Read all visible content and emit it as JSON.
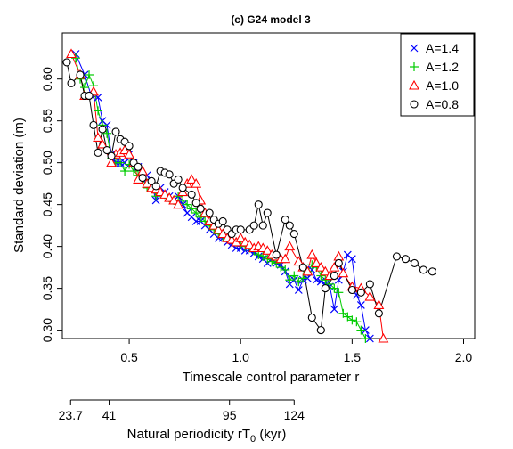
{
  "chart_data": {
    "type": "line",
    "title": "(c) G24 model 3",
    "xlabel": "Timescale control parameter r",
    "ylabel": "Standard deviation (m)",
    "xlim": [
      0.2,
      2.05
    ],
    "ylim": [
      0.29,
      0.655
    ],
    "xticks": [
      0.5,
      1.0,
      1.5,
      2.0
    ],
    "xtick_labels": [
      "0.5",
      "1.0",
      "1.5",
      "2.0"
    ],
    "yticks": [
      0.3,
      0.35,
      0.4,
      0.45,
      0.5,
      0.55,
      0.6
    ],
    "ytick_labels": [
      "0.30",
      "0.35",
      "0.40",
      "0.45",
      "0.50",
      "0.55",
      "0.60"
    ],
    "grid": false,
    "legend_position": "top-right",
    "secondary_axis": {
      "label": "Natural periodicity rT",
      "label_subscript": "0",
      "label_suffix": " (kyr)",
      "tick_labels": [
        "23.7",
        "41",
        "95",
        "124"
      ],
      "tick_positions_r": [
        0.237,
        0.41,
        0.95,
        1.24
      ]
    },
    "series": [
      {
        "name": "A=1.4",
        "marker": "x",
        "color": "#0000ff",
        "points": [
          [
            0.26,
            0.63
          ],
          [
            0.3,
            0.605
          ],
          [
            0.33,
            0.58
          ],
          [
            0.36,
            0.578
          ],
          [
            0.38,
            0.55
          ],
          [
            0.4,
            0.545
          ],
          [
            0.42,
            0.51
          ],
          [
            0.44,
            0.5
          ],
          [
            0.46,
            0.5
          ],
          [
            0.48,
            0.5
          ],
          [
            0.5,
            0.51
          ],
          [
            0.52,
            0.5
          ],
          [
            0.54,
            0.495
          ],
          [
            0.56,
            0.48
          ],
          [
            0.58,
            0.485
          ],
          [
            0.6,
            0.475
          ],
          [
            0.62,
            0.455
          ],
          [
            0.64,
            0.47
          ],
          [
            0.66,
            0.465
          ],
          [
            0.68,
            0.46
          ],
          [
            0.7,
            0.455
          ],
          [
            0.72,
            0.46
          ],
          [
            0.74,
            0.45
          ],
          [
            0.76,
            0.44
          ],
          [
            0.78,
            0.435
          ],
          [
            0.8,
            0.43
          ],
          [
            0.82,
            0.43
          ],
          [
            0.84,
            0.425
          ],
          [
            0.86,
            0.42
          ],
          [
            0.88,
            0.415
          ],
          [
            0.9,
            0.41
          ],
          [
            0.92,
            0.41
          ],
          [
            0.94,
            0.405
          ],
          [
            0.96,
            0.402
          ],
          [
            0.98,
            0.398
          ],
          [
            1.0,
            0.398
          ],
          [
            1.02,
            0.395
          ],
          [
            1.04,
            0.395
          ],
          [
            1.06,
            0.392
          ],
          [
            1.08,
            0.388
          ],
          [
            1.1,
            0.385
          ],
          [
            1.12,
            0.38
          ],
          [
            1.14,
            0.385
          ],
          [
            1.16,
            0.38
          ],
          [
            1.18,
            0.378
          ],
          [
            1.2,
            0.37
          ],
          [
            1.22,
            0.355
          ],
          [
            1.24,
            0.36
          ],
          [
            1.26,
            0.348
          ],
          [
            1.28,
            0.36
          ],
          [
            1.3,
            0.362
          ],
          [
            1.32,
            0.372
          ],
          [
            1.34,
            0.36
          ],
          [
            1.36,
            0.358
          ],
          [
            1.38,
            0.355
          ],
          [
            1.4,
            0.352
          ],
          [
            1.42,
            0.325
          ],
          [
            1.44,
            0.36
          ],
          [
            1.46,
            0.37
          ],
          [
            1.48,
            0.39
          ],
          [
            1.5,
            0.385
          ],
          [
            1.52,
            0.342
          ],
          [
            1.54,
            0.33
          ],
          [
            1.56,
            0.3
          ],
          [
            1.58,
            0.29
          ]
        ]
      },
      {
        "name": "A=1.2",
        "marker": "plus",
        "color": "#00cc00",
        "points": [
          [
            0.26,
            0.625
          ],
          [
            0.28,
            0.6
          ],
          [
            0.3,
            0.59
          ],
          [
            0.32,
            0.605
          ],
          [
            0.34,
            0.592
          ],
          [
            0.36,
            0.562
          ],
          [
            0.38,
            0.545
          ],
          [
            0.4,
            0.535
          ],
          [
            0.42,
            0.505
          ],
          [
            0.44,
            0.5
          ],
          [
            0.46,
            0.5
          ],
          [
            0.48,
            0.49
          ],
          [
            0.5,
            0.498
          ],
          [
            0.52,
            0.49
          ],
          [
            0.54,
            0.485
          ],
          [
            0.56,
            0.48
          ],
          [
            0.58,
            0.47
          ],
          [
            0.6,
            0.475
          ],
          [
            0.62,
            0.46
          ],
          [
            0.64,
            0.465
          ],
          [
            0.66,
            0.462
          ],
          [
            0.68,
            0.458
          ],
          [
            0.7,
            0.455
          ],
          [
            0.72,
            0.46
          ],
          [
            0.74,
            0.455
          ],
          [
            0.76,
            0.45
          ],
          [
            0.78,
            0.445
          ],
          [
            0.8,
            0.44
          ],
          [
            0.82,
            0.435
          ],
          [
            0.84,
            0.43
          ],
          [
            0.86,
            0.425
          ],
          [
            0.88,
            0.42
          ],
          [
            0.9,
            0.415
          ],
          [
            0.92,
            0.412
          ],
          [
            0.94,
            0.41
          ],
          [
            0.96,
            0.408
          ],
          [
            0.98,
            0.405
          ],
          [
            1.0,
            0.402
          ],
          [
            1.02,
            0.4
          ],
          [
            1.04,
            0.398
          ],
          [
            1.06,
            0.395
          ],
          [
            1.08,
            0.39
          ],
          [
            1.1,
            0.388
          ],
          [
            1.12,
            0.385
          ],
          [
            1.14,
            0.382
          ],
          [
            1.16,
            0.38
          ],
          [
            1.18,
            0.375
          ],
          [
            1.2,
            0.372
          ],
          [
            1.22,
            0.36
          ],
          [
            1.24,
            0.365
          ],
          [
            1.26,
            0.358
          ],
          [
            1.28,
            0.362
          ],
          [
            1.3,
            0.37
          ],
          [
            1.32,
            0.378
          ],
          [
            1.34,
            0.375
          ],
          [
            1.36,
            0.365
          ],
          [
            1.38,
            0.36
          ],
          [
            1.4,
            0.355
          ],
          [
            1.42,
            0.35
          ],
          [
            1.44,
            0.345
          ],
          [
            1.46,
            0.32
          ],
          [
            1.48,
            0.316
          ],
          [
            1.5,
            0.312
          ],
          [
            1.52,
            0.31
          ],
          [
            1.54,
            0.3
          ],
          [
            1.56,
            0.29
          ]
        ]
      },
      {
        "name": "A=1.0",
        "marker": "triangle",
        "color": "#ff0000",
        "points": [
          [
            0.24,
            0.63
          ],
          [
            0.28,
            0.605
          ],
          [
            0.3,
            0.58
          ],
          [
            0.34,
            0.585
          ],
          [
            0.36,
            0.53
          ],
          [
            0.38,
            0.522
          ],
          [
            0.42,
            0.5
          ],
          [
            0.44,
            0.51
          ],
          [
            0.46,
            0.512
          ],
          [
            0.48,
            0.515
          ],
          [
            0.5,
            0.51
          ],
          [
            0.52,
            0.5
          ],
          [
            0.54,
            0.48
          ],
          [
            0.56,
            0.49
          ],
          [
            0.58,
            0.475
          ],
          [
            0.6,
            0.47
          ],
          [
            0.62,
            0.468
          ],
          [
            0.64,
            0.465
          ],
          [
            0.66,
            0.462
          ],
          [
            0.68,
            0.458
          ],
          [
            0.7,
            0.455
          ],
          [
            0.72,
            0.45
          ],
          [
            0.74,
            0.465
          ],
          [
            0.76,
            0.475
          ],
          [
            0.78,
            0.48
          ],
          [
            0.8,
            0.475
          ],
          [
            0.82,
            0.455
          ],
          [
            0.84,
            0.44
          ],
          [
            0.86,
            0.43
          ],
          [
            0.88,
            0.425
          ],
          [
            0.9,
            0.42
          ],
          [
            0.92,
            0.415
          ],
          [
            0.94,
            0.41
          ],
          [
            0.96,
            0.408
          ],
          [
            0.98,
            0.405
          ],
          [
            1.0,
            0.41
          ],
          [
            1.02,
            0.405
          ],
          [
            1.04,
            0.402
          ],
          [
            1.06,
            0.398
          ],
          [
            1.08,
            0.4
          ],
          [
            1.1,
            0.398
          ],
          [
            1.12,
            0.395
          ],
          [
            1.14,
            0.39
          ],
          [
            1.16,
            0.388
          ],
          [
            1.18,
            0.385
          ],
          [
            1.2,
            0.385
          ],
          [
            1.22,
            0.4
          ],
          [
            1.26,
            0.382
          ],
          [
            1.28,
            0.375
          ],
          [
            1.3,
            0.37
          ],
          [
            1.32,
            0.39
          ],
          [
            1.34,
            0.38
          ],
          [
            1.36,
            0.375
          ],
          [
            1.38,
            0.37
          ],
          [
            1.4,
            0.365
          ],
          [
            1.42,
            0.375
          ],
          [
            1.44,
            0.388
          ],
          [
            1.46,
            0.368
          ],
          [
            1.5,
            0.352
          ],
          [
            1.54,
            0.35
          ],
          [
            1.58,
            0.34
          ],
          [
            1.62,
            0.33
          ],
          [
            1.64,
            0.29
          ]
        ]
      },
      {
        "name": "A=0.8",
        "marker": "circle",
        "color": "#000000",
        "points": [
          [
            0.22,
            0.62
          ],
          [
            0.24,
            0.595
          ],
          [
            0.28,
            0.605
          ],
          [
            0.3,
            0.58
          ],
          [
            0.32,
            0.58
          ],
          [
            0.34,
            0.545
          ],
          [
            0.36,
            0.512
          ],
          [
            0.38,
            0.54
          ],
          [
            0.4,
            0.515
          ],
          [
            0.42,
            0.508
          ],
          [
            0.44,
            0.537
          ],
          [
            0.46,
            0.528
          ],
          [
            0.48,
            0.525
          ],
          [
            0.5,
            0.52
          ],
          [
            0.52,
            0.5
          ],
          [
            0.54,
            0.495
          ],
          [
            0.56,
            0.482
          ],
          [
            0.6,
            0.478
          ],
          [
            0.62,
            0.472
          ],
          [
            0.64,
            0.49
          ],
          [
            0.66,
            0.488
          ],
          [
            0.68,
            0.486
          ],
          [
            0.7,
            0.475
          ],
          [
            0.72,
            0.48
          ],
          [
            0.74,
            0.47
          ],
          [
            0.78,
            0.462
          ],
          [
            0.8,
            0.452
          ],
          [
            0.82,
            0.445
          ],
          [
            0.86,
            0.44
          ],
          [
            0.88,
            0.432
          ],
          [
            0.9,
            0.427
          ],
          [
            0.92,
            0.43
          ],
          [
            0.94,
            0.42
          ],
          [
            0.96,
            0.415
          ],
          [
            0.98,
            0.42
          ],
          [
            1.0,
            0.42
          ],
          [
            1.04,
            0.42
          ],
          [
            1.06,
            0.425
          ],
          [
            1.08,
            0.45
          ],
          [
            1.1,
            0.425
          ],
          [
            1.12,
            0.44
          ],
          [
            1.16,
            0.39
          ],
          [
            1.2,
            0.432
          ],
          [
            1.22,
            0.425
          ],
          [
            1.24,
            0.415
          ],
          [
            1.28,
            0.375
          ],
          [
            1.32,
            0.315
          ],
          [
            1.36,
            0.3
          ],
          [
            1.38,
            0.35
          ],
          [
            1.42,
            0.365
          ],
          [
            1.44,
            0.38
          ],
          [
            1.5,
            0.348
          ],
          [
            1.54,
            0.345
          ],
          [
            1.58,
            0.355
          ],
          [
            1.62,
            0.32
          ],
          [
            1.7,
            0.388
          ],
          [
            1.74,
            0.385
          ],
          [
            1.78,
            0.38
          ],
          [
            1.82,
            0.372
          ],
          [
            1.86,
            0.37
          ]
        ]
      }
    ]
  }
}
